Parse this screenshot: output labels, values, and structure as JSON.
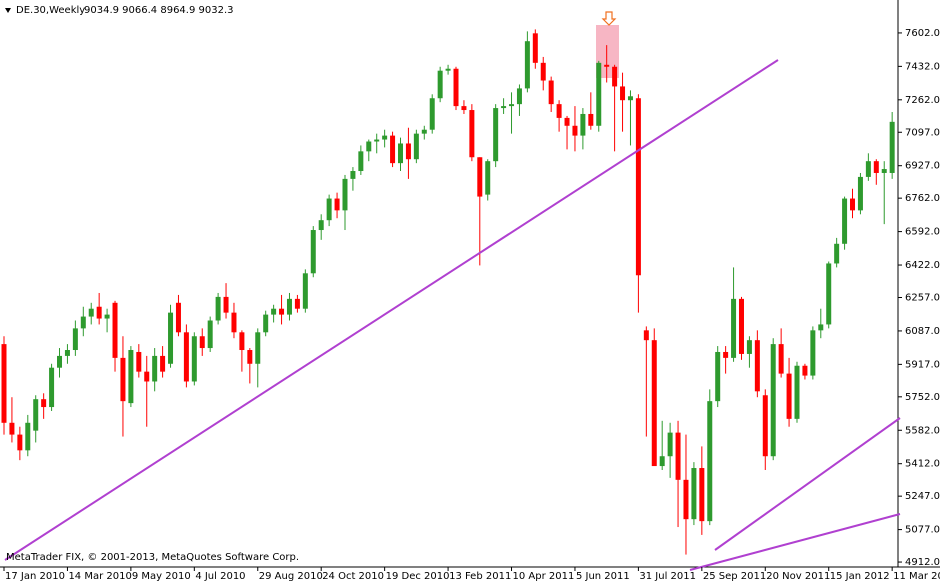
{
  "chart_data": {
    "type": "candlestick",
    "title": "DE.30,Weekly",
    "subtitle": "9034.9 9066.4 8964.9 9032.3",
    "annotation": "MetaTrader FIX, © 2001-2013, MetaQuotes Software Corp.",
    "up_color": "#2e9a2e",
    "down_color": "#ff0000",
    "ylim": [
      4897,
      7744
    ],
    "yticks": [
      {
        "value": 7602,
        "label": "7602.0"
      },
      {
        "value": 7432,
        "label": "7432.0"
      },
      {
        "value": 7262,
        "label": "7262.0"
      },
      {
        "value": 7097,
        "label": "7097.0"
      },
      {
        "value": 6927,
        "label": "6927.0"
      },
      {
        "value": 6762,
        "label": "6762.0"
      },
      {
        "value": 6592,
        "label": "6592.0"
      },
      {
        "value": 6422,
        "label": "6422.0"
      },
      {
        "value": 6257,
        "label": "6257.0"
      },
      {
        "value": 6087,
        "label": "6087.0"
      },
      {
        "value": 5917,
        "label": "5917.0"
      },
      {
        "value": 5752,
        "label": "5752.0"
      },
      {
        "value": 5582,
        "label": "5582.0"
      },
      {
        "value": 5412,
        "label": "5412.0"
      },
      {
        "value": 5247,
        "label": "5247.0"
      },
      {
        "value": 5077,
        "label": "5077.0"
      },
      {
        "value": 4912,
        "label": "4912.0"
      }
    ],
    "categories": [
      "17 Jan 2010",
      null,
      null,
      null,
      null,
      null,
      null,
      null,
      "14 Mar 2010",
      null,
      null,
      null,
      null,
      null,
      null,
      null,
      "9 May 2010",
      null,
      null,
      null,
      null,
      null,
      null,
      null,
      "4 Jul 2010",
      null,
      null,
      null,
      null,
      null,
      null,
      null,
      "29 Aug 2010",
      null,
      null,
      null,
      null,
      null,
      null,
      null,
      "24 Oct 2010",
      null,
      null,
      null,
      null,
      null,
      null,
      null,
      "19 Dec 2010",
      null,
      null,
      null,
      null,
      null,
      null,
      null,
      "13 Feb 2011",
      null,
      null,
      null,
      null,
      null,
      null,
      null,
      "10 Apr 2011",
      null,
      null,
      null,
      null,
      null,
      null,
      null,
      "5 Jun 2011",
      null,
      null,
      null,
      null,
      null,
      null,
      null,
      "31 Jul 2011",
      null,
      null,
      null,
      null,
      null,
      null,
      null,
      "25 Sep 2011",
      null,
      null,
      null,
      null,
      null,
      null,
      null,
      "20 Nov 2011",
      null,
      null,
      null,
      null,
      null,
      null,
      null,
      "15 Jan 2012",
      null,
      null,
      null,
      null,
      null,
      null,
      null,
      "11 Mar 20"
    ],
    "open": [
      6020,
      5620,
      5560,
      5480,
      5580,
      5740,
      5700,
      5900,
      5960,
      5990,
      6100,
      6160,
      6210,
      6150,
      6230,
      5950,
      5720,
      5980,
      5880,
      5830,
      5960,
      5920,
      6230,
      6080,
      5830,
      6060,
      6000,
      6140,
      6260,
      6180,
      6080,
      5990,
      5920,
      6080,
      6170,
      6200,
      6170,
      6250,
      6200,
      6380,
      6600,
      6650,
      6760,
      6700,
      6860,
      6900,
      7000,
      7050,
      7060,
      7080,
      6940,
      7040,
      6960,
      7090,
      7110,
      7270,
      7410,
      7420,
      7230,
      7210,
      6970,
      6780,
      6950,
      7220,
      7230,
      7240,
      7320,
      7600,
      7450,
      7360,
      7240,
      7170,
      7130,
      7080,
      7190,
      7130,
      7440,
      7430,
      7330,
      7260,
      7270,
      6090,
      6040,
      5400,
      5450,
      5570,
      5330,
      5130,
      5390,
      5120,
      5730,
      5980,
      5950,
      6250,
      5970,
      6040,
      5760,
      5450,
      6020,
      5870,
      5640,
      5910,
      5860,
      6090,
      6120,
      6430,
      6530,
      6760,
      6700,
      6870,
      6950,
      6890,
      6890
    ],
    "high": [
      6060,
      5750,
      5600,
      5660,
      5760,
      5770,
      5920,
      6000,
      6020,
      6140,
      6210,
      6230,
      6280,
      6200,
      6240,
      6060,
      6010,
      6020,
      5960,
      6000,
      6010,
      6220,
      6270,
      6120,
      6080,
      6100,
      6160,
      6280,
      6330,
      6230,
      6090,
      6000,
      6100,
      6190,
      6220,
      6270,
      6280,
      6270,
      6400,
      6620,
      6680,
      6780,
      6790,
      6880,
      6920,
      7030,
      7060,
      7090,
      7110,
      7100,
      7070,
      7120,
      7110,
      7130,
      7290,
      7430,
      7440,
      7430,
      7260,
      7240,
      6970,
      6960,
      7240,
      7270,
      7300,
      7340,
      7610,
      7620,
      7480,
      7380,
      7260,
      7180,
      7230,
      7220,
      7300,
      7460,
      7540,
      7440,
      7400,
      7310,
      7290,
      6110,
      6100,
      5630,
      5620,
      5630,
      5560,
      5420,
      5500,
      5790,
      6010,
      6010,
      6410,
      6260,
      6060,
      6090,
      5790,
      6050,
      6100,
      5950,
      5930,
      5920,
      6110,
      6200,
      6440,
      6560,
      6770,
      6810,
      6890,
      6990,
      6960,
      6950,
      7200
    ],
    "low": [
      5560,
      5520,
      5430,
      5450,
      5520,
      5640,
      5680,
      5850,
      5920,
      5960,
      6060,
      6120,
      6120,
      6080,
      5880,
      5550,
      5700,
      5850,
      5600,
      5780,
      5850,
      5900,
      6060,
      5800,
      5810,
      5960,
      5980,
      6120,
      6150,
      6050,
      5880,
      5820,
      5800,
      6060,
      6130,
      6120,
      6140,
      6180,
      6180,
      6360,
      6550,
      6620,
      6660,
      6600,
      6800,
      6880,
      6950,
      6990,
      7020,
      6920,
      6900,
      6860,
      6940,
      7060,
      7090,
      7250,
      7390,
      7210,
      7190,
      6950,
      6420,
      6750,
      6920,
      7190,
      7090,
      7180,
      7300,
      7420,
      7310,
      7200,
      7100,
      7010,
      7000,
      7010,
      7110,
      7100,
      7350,
      7000,
      7100,
      7030,
      6180,
      5550,
      5410,
      5380,
      5340,
      5090,
      4950,
      5100,
      5050,
      5100,
      5700,
      5870,
      5930,
      5940,
      5900,
      5750,
      5380,
      5430,
      5850,
      5600,
      5620,
      5840,
      5840,
      6050,
      6100,
      6410,
      6500,
      6660,
      6680,
      6850,
      6830,
      6630,
      6860
    ],
    "close": [
      5620,
      5560,
      5480,
      5620,
      5740,
      5700,
      5900,
      5960,
      5990,
      6100,
      6160,
      6200,
      6150,
      6170,
      5950,
      5730,
      5990,
      5880,
      5830,
      5960,
      5880,
      6180,
      6080,
      5830,
      6060,
      6000,
      6140,
      6260,
      6180,
      6080,
      5990,
      5920,
      6080,
      6170,
      6200,
      6170,
      6250,
      6200,
      6380,
      6600,
      6650,
      6760,
      6700,
      6860,
      6900,
      7000,
      7050,
      7060,
      7080,
      6940,
      7040,
      6960,
      7090,
      7110,
      7270,
      7410,
      7420,
      7230,
      7210,
      6970,
      6770,
      6950,
      7220,
      7230,
      7240,
      7320,
      7560,
      7450,
      7360,
      7240,
      7170,
      7130,
      7080,
      7190,
      7130,
      7450,
      7430,
      7330,
      7260,
      7280,
      6370,
      6040,
      5400,
      5450,
      5570,
      5330,
      5130,
      5390,
      5120,
      5730,
      5980,
      5950,
      6250,
      5970,
      6040,
      5780,
      5450,
      6020,
      5870,
      5640,
      5910,
      5860,
      6090,
      6120,
      6430,
      6530,
      6760,
      6700,
      6870,
      6950,
      6890,
      6910,
      7150
    ]
  }
}
